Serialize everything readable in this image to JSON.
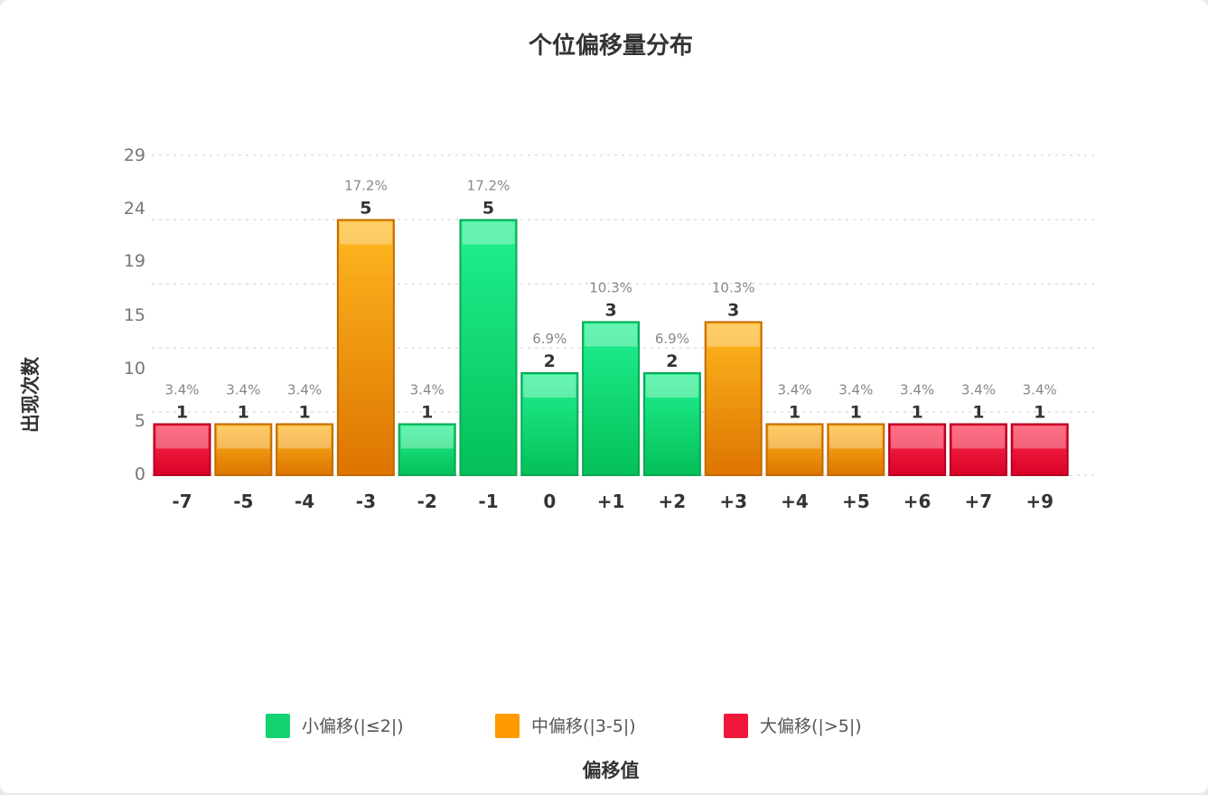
{
  "chart_data": {
    "type": "bar",
    "title": "个位偏移量分布",
    "xlabel": "偏移值",
    "ylabel": "出现次数",
    "yticks": [
      "0",
      "5",
      "10",
      "15",
      "19",
      "24",
      "29"
    ],
    "categories": [
      "-7",
      "-5",
      "-4",
      "-3",
      "-2",
      "-1",
      "0",
      "+1",
      "+2",
      "+3",
      "+4",
      "+5",
      "+6",
      "+7",
      "+9"
    ],
    "values": [
      1,
      1,
      1,
      5,
      1,
      5,
      2,
      3,
      2,
      3,
      1,
      1,
      1,
      1,
      1
    ],
    "percentages": [
      "3.4%",
      "3.4%",
      "3.4%",
      "17.2%",
      "3.4%",
      "17.2%",
      "6.9%",
      "10.3%",
      "6.9%",
      "10.3%",
      "3.4%",
      "3.4%",
      "3.4%",
      "3.4%",
      "3.4%"
    ],
    "groups": [
      "large",
      "medium",
      "medium",
      "medium",
      "small",
      "small",
      "small",
      "small",
      "small",
      "medium",
      "medium",
      "medium",
      "large",
      "large",
      "large"
    ],
    "grid": true,
    "legend_position": "bottom",
    "legend": [
      {
        "key": "small",
        "label": "小偏移(|≤2|)",
        "color": "#14d272"
      },
      {
        "key": "medium",
        "label": "中偏移(|3-5|)",
        "color": "#ff9a00"
      },
      {
        "key": "large",
        "label": "大偏移(|>5|)",
        "color": "#f0173a"
      }
    ]
  },
  "colors": {
    "small": {
      "top": "#20f090",
      "bottom": "#04c058",
      "stroke": "#0aa855"
    },
    "medium": {
      "top": "#ffb820",
      "bottom": "#dd7400",
      "stroke": "#c46a00"
    },
    "large": {
      "top": "#ff3050",
      "bottom": "#d80026",
      "stroke": "#b5001f"
    }
  }
}
